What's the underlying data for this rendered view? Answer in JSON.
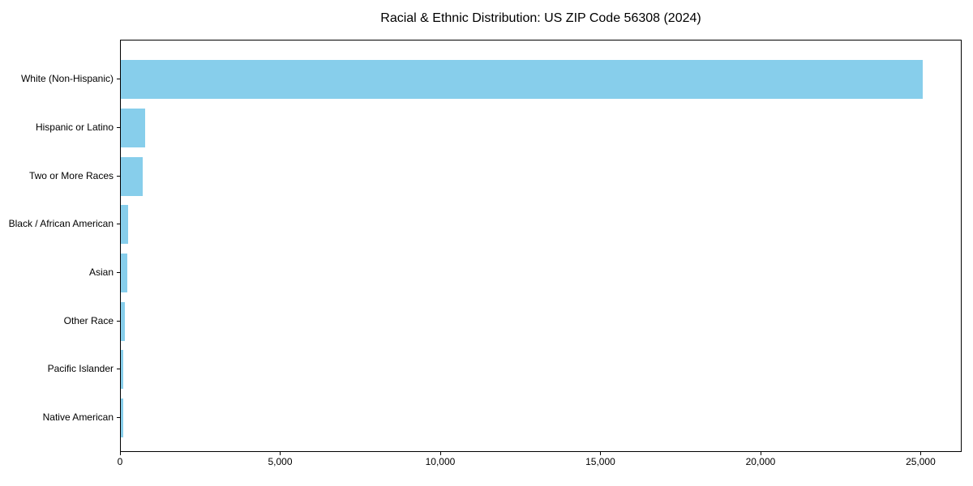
{
  "chart_data": {
    "type": "bar",
    "orientation": "horizontal",
    "title": "Racial & Ethnic Distribution: US ZIP Code 56308 (2024)",
    "categories": [
      "White (Non-Hispanic)",
      "Hispanic or Latino",
      "Two or More Races",
      "Black / African American",
      "Asian",
      "Other Race",
      "Pacific Islander",
      "Native American"
    ],
    "values": [
      25040,
      760,
      690,
      230,
      205,
      130,
      85,
      75
    ],
    "bar_color": "#87CEEB",
    "xlabel": "",
    "ylabel": "",
    "xlim": [
      0,
      26280
    ],
    "xticks": [
      0,
      5000,
      10000,
      15000,
      20000,
      25000
    ],
    "xtick_labels": [
      "0",
      "5,000",
      "10,000",
      "15,000",
      "20,000",
      "25,000"
    ],
    "grid": false,
    "legend": "none",
    "axis_color": "#000000",
    "text_color": "#000000",
    "background_color": "#ffffff"
  }
}
